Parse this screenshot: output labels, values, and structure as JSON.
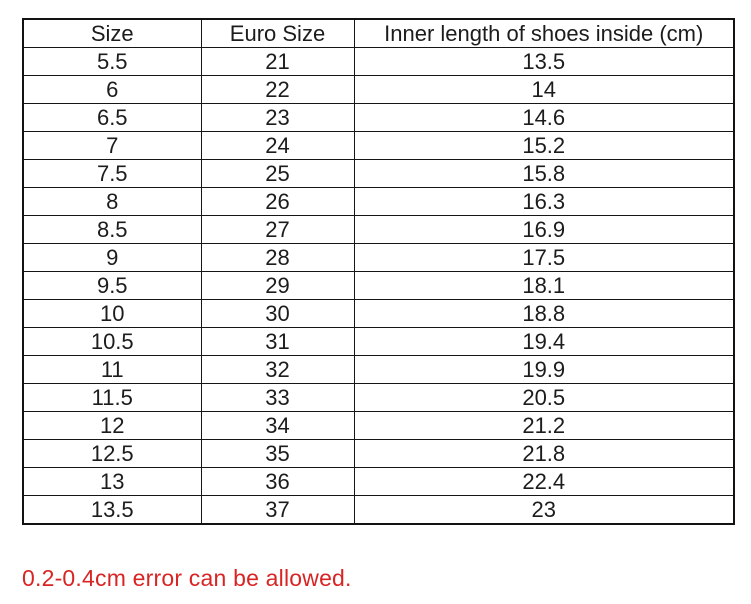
{
  "table": {
    "headers": [
      "Size",
      "Euro Size",
      "Inner length of shoes inside (cm)"
    ],
    "rows": [
      [
        "5.5",
        "21",
        "13.5"
      ],
      [
        "6",
        "22",
        "14"
      ],
      [
        "6.5",
        "23",
        "14.6"
      ],
      [
        "7",
        "24",
        "15.2"
      ],
      [
        "7.5",
        "25",
        "15.8"
      ],
      [
        "8",
        "26",
        "16.3"
      ],
      [
        "8.5",
        "27",
        "16.9"
      ],
      [
        "9",
        "28",
        "17.5"
      ],
      [
        "9.5",
        "29",
        "18.1"
      ],
      [
        "10",
        "30",
        "18.8"
      ],
      [
        "10.5",
        "31",
        "19.4"
      ],
      [
        "11",
        "32",
        "19.9"
      ],
      [
        "11.5",
        "33",
        "20.5"
      ],
      [
        "12",
        "34",
        "21.2"
      ],
      [
        "12.5",
        "35",
        "21.8"
      ],
      [
        "13",
        "36",
        "22.4"
      ],
      [
        "13.5",
        "37",
        "23"
      ]
    ]
  },
  "note": {
    "text": "0.2-0.4cm error can be allowed.",
    "color": "#d92424"
  },
  "colors": {
    "background": "#ffffff",
    "border": "#161616",
    "text": "#1c1c1c"
  }
}
